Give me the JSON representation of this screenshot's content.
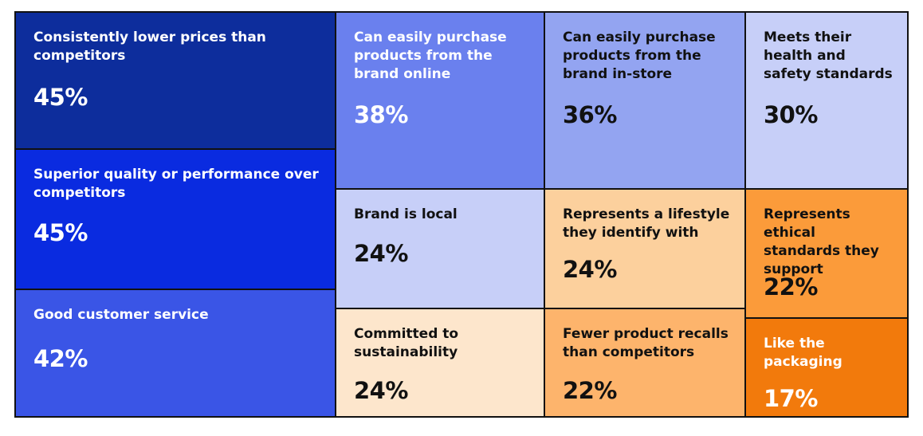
{
  "chart_data": {
    "type": "treemap",
    "items": [
      {
        "label": "Consistently lower prices than competitors",
        "value": 45,
        "display": "45%",
        "color": "#0d2d9c",
        "text_color": "#ffffff"
      },
      {
        "label": "Superior quality or performance over competitors",
        "value": 45,
        "display": "45%",
        "color": "#0a2be0",
        "text_color": "#ffffff"
      },
      {
        "label": "Good customer service",
        "value": 42,
        "display": "42%",
        "color": "#3a55e6",
        "text_color": "#ffffff"
      },
      {
        "label": "Can easily purchase products from the brand online",
        "value": 38,
        "display": "38%",
        "color": "#6a80ee",
        "text_color": "#ffffff"
      },
      {
        "label": "Can easily purchase products from the brand in-store",
        "value": 36,
        "display": "36%",
        "color": "#93a4f1",
        "text_color": "#111111"
      },
      {
        "label": "Meets their health and safety standards",
        "value": 30,
        "display": "30%",
        "color": "#c7cff8",
        "text_color": "#111111"
      },
      {
        "label": "Brand is local",
        "value": 24,
        "display": "24%",
        "color": "#c7cff8",
        "text_color": "#111111"
      },
      {
        "label": "Represents a lifestyle they identify with",
        "value": 24,
        "display": "24%",
        "color": "#fcd09d",
        "text_color": "#111111"
      },
      {
        "label": "Represents ethical standards they support",
        "value": 22,
        "display": "22%",
        "color": "#fb9b3a",
        "text_color": "#111111"
      },
      {
        "label": "Committed to sustainability",
        "value": 24,
        "display": "24%",
        "color": "#fde6cc",
        "text_color": "#111111"
      },
      {
        "label": "Fewer product recalls than competitors",
        "value": 22,
        "display": "22%",
        "color": "#fdb46c",
        "text_color": "#111111"
      },
      {
        "label": "Like the packaging",
        "value": 17,
        "display": "17%",
        "color": "#f27a0c",
        "text_color": "#ffffff"
      }
    ]
  }
}
